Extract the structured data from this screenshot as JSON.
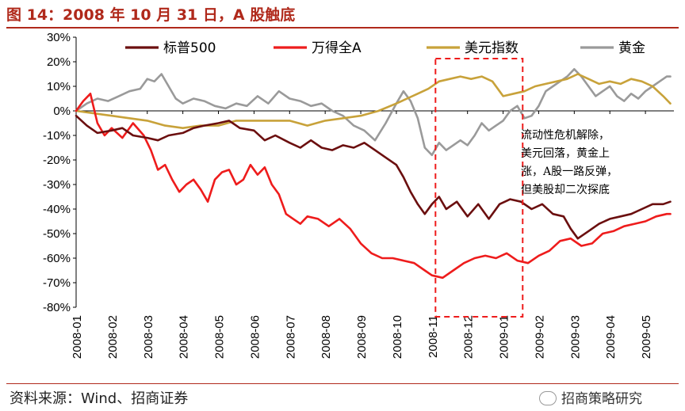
{
  "header": {
    "title": "图 14：2008 年 10 月 31 日，A 股触底"
  },
  "footer": {
    "source": "资料来源：Wind、招商证券",
    "brand": "招商策略研究"
  },
  "annotation": {
    "lines": [
      "流动性危机解除，",
      "美元回落，黄金上",
      "涨，A股一路反弹，",
      "但美股却二次探底"
    ]
  },
  "colors": {
    "sp500": "#6b0f0f",
    "wind_a": "#ee1c1c",
    "dxy": "#c8a23a",
    "gold": "#9a9a9a",
    "box": "#ee1c1c"
  },
  "chart_data": {
    "type": "line",
    "title": "2008 年 10 月 31 日，A 股触底",
    "xlabel": "",
    "ylabel": "",
    "ylim": [
      -80,
      30
    ],
    "yticks": [
      30,
      20,
      10,
      0,
      -10,
      -20,
      -30,
      -40,
      -50,
      -60,
      -70,
      -80
    ],
    "ytick_labels": [
      "30%",
      "20%",
      "10%",
      "0%",
      "-10%",
      "-20%",
      "-30%",
      "-40%",
      "-50%",
      "-60%",
      "-70%",
      "-80%"
    ],
    "xlim": [
      0,
      16.8
    ],
    "x_tick_labels": [
      "2008-01",
      "2008-02",
      "2008-03",
      "2008-04",
      "2008-05",
      "2008-06",
      "2008-07",
      "2008-08",
      "2008-09",
      "2008-10",
      "2008-11",
      "2008-12",
      "2009-01",
      "2009-02",
      "2009-03",
      "2009-04",
      "2009-05"
    ],
    "x_unit": "months since 2008-01",
    "legend_position": "top",
    "highlight_range": [
      10.1,
      12.55
    ],
    "series": [
      {
        "name": "标普500",
        "key": "sp500",
        "x": [
          0,
          0.3,
          0.6,
          1.0,
          1.3,
          1.6,
          2.0,
          2.3,
          2.6,
          3.0,
          3.3,
          3.6,
          4.0,
          4.3,
          4.6,
          5.0,
          5.3,
          5.6,
          6.0,
          6.3,
          6.6,
          6.9,
          7.2,
          7.5,
          7.8,
          8.1,
          8.4,
          8.7,
          9.0,
          9.2,
          9.4,
          9.6,
          9.8,
          10.0,
          10.2,
          10.4,
          10.7,
          11.0,
          11.3,
          11.6,
          11.9,
          12.2,
          12.5,
          12.8,
          13.1,
          13.4,
          13.7,
          13.9,
          14.1,
          14.4,
          14.7,
          15.0,
          15.3,
          15.6,
          15.9,
          16.2,
          16.5,
          16.7
        ],
        "y": [
          -2,
          -6,
          -9,
          -8,
          -7,
          -10,
          -11,
          -12,
          -10,
          -9,
          -7,
          -6,
          -5,
          -4,
          -7,
          -8,
          -12,
          -10,
          -13,
          -15,
          -12,
          -15,
          -16,
          -14,
          -15,
          -13,
          -16,
          -19,
          -22,
          -27,
          -33,
          -38,
          -42,
          -38,
          -35,
          -40,
          -37,
          -43,
          -38,
          -44,
          -38,
          -36,
          -37,
          -40,
          -38,
          -42,
          -43,
          -48,
          -52,
          -49,
          -46,
          -44,
          -43,
          -42,
          -40,
          -38,
          -38,
          -37
        ]
      },
      {
        "name": "万得全A",
        "key": "wind_a",
        "x": [
          0,
          0.2,
          0.4,
          0.6,
          0.8,
          1.0,
          1.3,
          1.6,
          1.9,
          2.1,
          2.3,
          2.5,
          2.7,
          2.9,
          3.1,
          3.3,
          3.5,
          3.7,
          3.9,
          4.1,
          4.3,
          4.5,
          4.7,
          4.9,
          5.1,
          5.3,
          5.5,
          5.7,
          5.9,
          6.1,
          6.3,
          6.5,
          6.8,
          7.1,
          7.4,
          7.7,
          8.0,
          8.3,
          8.6,
          8.9,
          9.2,
          9.5,
          9.8,
          10.0,
          10.3,
          10.6,
          10.9,
          11.2,
          11.5,
          11.8,
          12.1,
          12.4,
          12.7,
          13.0,
          13.3,
          13.6,
          13.9,
          14.2,
          14.5,
          14.8,
          15.1,
          15.4,
          15.7,
          16.0,
          16.3,
          16.6,
          16.7
        ],
        "y": [
          0,
          4,
          7,
          -5,
          -10,
          -7,
          -11,
          -5,
          -10,
          -16,
          -24,
          -22,
          -28,
          -33,
          -30,
          -28,
          -32,
          -37,
          -28,
          -25,
          -24,
          -30,
          -28,
          -22,
          -26,
          -23,
          -30,
          -34,
          -42,
          -44,
          -46,
          -43,
          -44,
          -47,
          -44,
          -48,
          -54,
          -58,
          -60,
          -60,
          -61,
          -62,
          -65,
          -67,
          -68,
          -65,
          -62,
          -60,
          -59,
          -60,
          -58,
          -61,
          -62,
          -59,
          -57,
          -53,
          -52,
          -55,
          -54,
          -50,
          -49,
          -47,
          -46,
          -45,
          -43,
          -42,
          -42
        ]
      },
      {
        "name": "美元指数",
        "key": "dxy",
        "x": [
          0,
          0.5,
          1.0,
          1.5,
          2.0,
          2.5,
          3.0,
          3.5,
          4.0,
          4.5,
          5.0,
          5.5,
          6.0,
          6.5,
          7.0,
          7.5,
          8.0,
          8.5,
          9.0,
          9.3,
          9.6,
          9.9,
          10.2,
          10.5,
          10.8,
          11.1,
          11.4,
          11.7,
          12.0,
          12.3,
          12.6,
          12.9,
          13.2,
          13.5,
          13.8,
          14.1,
          14.4,
          14.7,
          15.0,
          15.3,
          15.6,
          15.9,
          16.2,
          16.5,
          16.7
        ],
        "y": [
          0,
          -1,
          -2,
          -3,
          -4,
          -6,
          -7,
          -6,
          -6,
          -4,
          -4,
          -4,
          -4,
          -6,
          -4,
          -3,
          -2,
          0,
          3,
          5,
          7,
          9,
          12,
          13,
          14,
          13,
          14,
          12,
          6,
          7,
          8,
          10,
          11,
          12,
          13,
          15,
          13,
          11,
          12,
          11,
          13,
          12,
          10,
          6,
          3
        ]
      },
      {
        "name": "黄金",
        "key": "gold",
        "x": [
          0,
          0.3,
          0.6,
          0.9,
          1.2,
          1.5,
          1.8,
          2.0,
          2.2,
          2.4,
          2.6,
          2.8,
          3.0,
          3.3,
          3.6,
          3.9,
          4.2,
          4.5,
          4.8,
          5.1,
          5.4,
          5.7,
          6.0,
          6.3,
          6.6,
          6.9,
          7.2,
          7.5,
          7.8,
          8.1,
          8.4,
          8.7,
          9.0,
          9.2,
          9.4,
          9.6,
          9.8,
          10.0,
          10.2,
          10.4,
          10.6,
          10.8,
          11.0,
          11.2,
          11.4,
          11.6,
          11.8,
          12.0,
          12.2,
          12.4,
          12.6,
          12.8,
          13.0,
          13.2,
          13.4,
          13.6,
          13.8,
          14.0,
          14.2,
          14.4,
          14.6,
          14.8,
          15.0,
          15.2,
          15.4,
          15.6,
          15.8,
          16.0,
          16.2,
          16.4,
          16.6,
          16.7
        ],
        "y": [
          0,
          3,
          5,
          4,
          6,
          8,
          9,
          13,
          12,
          15,
          10,
          5,
          3,
          5,
          4,
          2,
          1,
          3,
          2,
          6,
          3,
          8,
          5,
          4,
          2,
          3,
          0,
          -2,
          -6,
          -8,
          -12,
          -5,
          3,
          8,
          4,
          -3,
          -15,
          -18,
          -13,
          -16,
          -14,
          -12,
          -14,
          -10,
          -5,
          -8,
          -6,
          -4,
          0,
          2,
          -3,
          -2,
          2,
          8,
          10,
          12,
          14,
          17,
          14,
          10,
          6,
          8,
          10,
          6,
          4,
          7,
          5,
          8,
          10,
          12,
          14,
          14
        ]
      }
    ]
  }
}
